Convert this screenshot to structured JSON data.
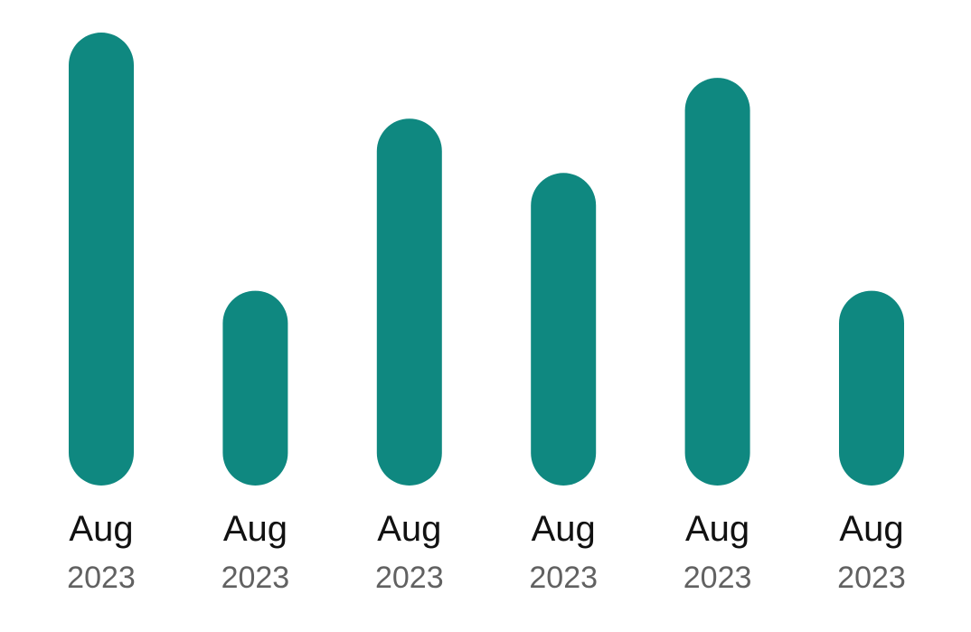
{
  "chart_data": {
    "type": "bar",
    "colors": {
      "bar": "#0f8880"
    },
    "categories": [
      {
        "month": "Aug",
        "year": "2023"
      },
      {
        "month": "Aug",
        "year": "2023"
      },
      {
        "month": "Aug",
        "year": "2023"
      },
      {
        "month": "Aug",
        "year": "2023"
      },
      {
        "month": "Aug",
        "year": "2023"
      },
      {
        "month": "Aug",
        "year": "2023"
      }
    ],
    "values": [
      100,
      43,
      81,
      69,
      90,
      43
    ],
    "value_unit": "percent of tallest bar",
    "ylim": [
      0,
      100
    ],
    "grid": false,
    "legend": "none",
    "axes_visible": false
  }
}
